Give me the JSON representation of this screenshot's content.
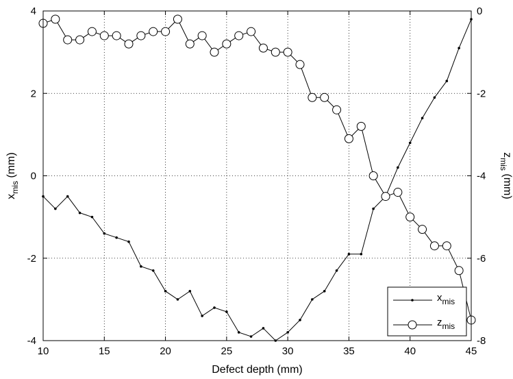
{
  "chart_data": {
    "type": "line",
    "xlabel": "Defect depth (mm)",
    "ylabel_left": {
      "main": "x",
      "sub": "mis",
      "unit": " (mm)"
    },
    "ylabel_right": {
      "main": "z",
      "sub": "mis",
      "unit": " (mm)"
    },
    "xlim": [
      10,
      45
    ],
    "ylim_left": [
      -4,
      4
    ],
    "ylim_right": [
      -8,
      0
    ],
    "xticks": [
      10,
      15,
      20,
      25,
      30,
      35,
      40,
      45
    ],
    "yticks_left": [
      -4,
      -2,
      0,
      2,
      4
    ],
    "yticks_right": [
      -8,
      -6,
      -4,
      -2,
      0
    ],
    "grid": true,
    "legend_position": "bottom-right",
    "x": [
      10,
      11,
      12,
      13,
      14,
      15,
      16,
      17,
      18,
      19,
      20,
      21,
      22,
      23,
      24,
      25,
      26,
      27,
      28,
      29,
      30,
      31,
      32,
      33,
      34,
      35,
      36,
      37,
      38,
      39,
      40,
      41,
      42,
      43,
      44,
      45
    ],
    "series": [
      {
        "name": "x",
        "name_sub": "mis",
        "axis": "left",
        "marker": "dot",
        "values": [
          -0.5,
          -0.8,
          -0.5,
          -0.9,
          -1.0,
          -1.4,
          -1.5,
          -1.6,
          -2.2,
          -2.3,
          -2.8,
          -3.0,
          -2.8,
          -3.4,
          -3.2,
          -3.3,
          -3.8,
          -3.9,
          -3.7,
          -4.0,
          -3.8,
          -3.5,
          -3.0,
          -2.8,
          -2.3,
          -1.9,
          -1.9,
          -0.8,
          -0.5,
          0.2,
          0.8,
          1.4,
          1.9,
          2.3,
          3.1,
          3.8
        ]
      },
      {
        "name": "z",
        "name_sub": "mis",
        "axis": "right",
        "marker": "circle",
        "values": [
          -0.3,
          -0.2,
          -0.7,
          -0.7,
          -0.5,
          -0.6,
          -0.6,
          -0.8,
          -0.6,
          -0.5,
          -0.5,
          -0.2,
          -0.8,
          -0.6,
          -1.0,
          -0.8,
          -0.6,
          -0.5,
          -0.9,
          -1.0,
          -1.0,
          -1.3,
          -2.1,
          -2.1,
          -2.4,
          -3.1,
          -2.8,
          -4.0,
          -4.5,
          -4.4,
          -5.0,
          -5.3,
          -5.7,
          -5.7,
          -6.3,
          -7.5
        ]
      }
    ]
  }
}
